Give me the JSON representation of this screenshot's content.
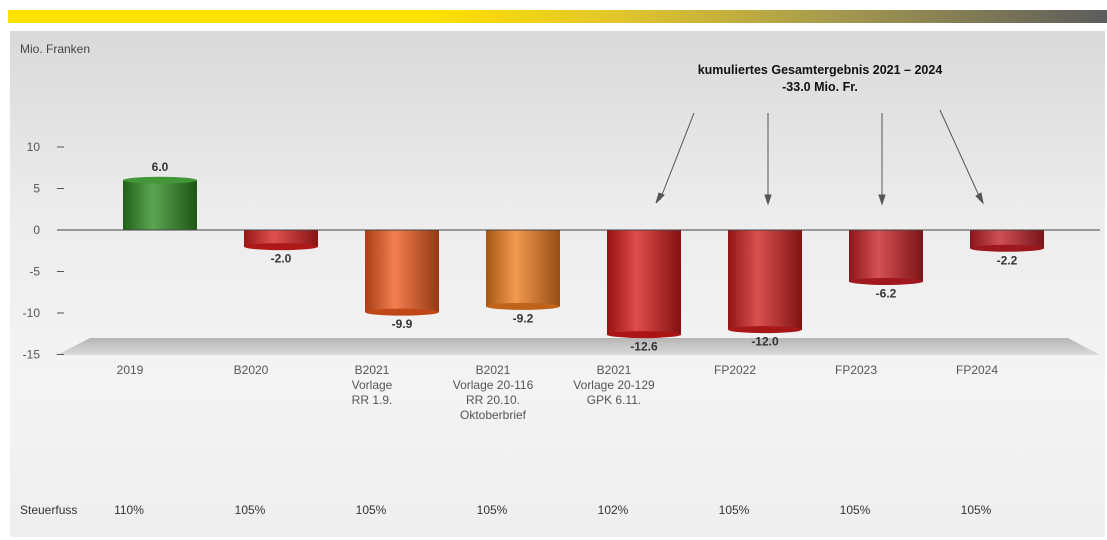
{
  "chart_data": {
    "type": "bar",
    "ylabel": "Mio. Franken",
    "ylim": [
      -15,
      10
    ],
    "yticks": [
      10,
      5,
      0,
      -5,
      -10,
      -15
    ],
    "categories": [
      [
        "2019"
      ],
      [
        "B2020"
      ],
      [
        "B2021",
        "Vorlage",
        "RR 1.9."
      ],
      [
        "B2021",
        "Vorlage 20-116",
        "RR 20.10.",
        "Oktoberbrief"
      ],
      [
        "B2021",
        "Vorlage 20-129",
        "GPK 6.11."
      ],
      [
        "FP2022"
      ],
      [
        "FP2023"
      ],
      [
        "FP2024"
      ]
    ],
    "values": [
      6.0,
      -2.0,
      -9.9,
      -9.2,
      -12.6,
      -12.0,
      -6.2,
      -2.2
    ],
    "value_labels": [
      "6.0",
      "-2.0",
      "-9.9",
      "-9.2",
      "-12.6",
      "-12.0",
      "-6.2",
      "-2.2"
    ],
    "bar_colors": [
      "#2e8b22",
      "#d81f1f",
      "#f05a1e",
      "#f07c1e",
      "#d61a1a",
      "#d01e1e",
      "#c81e24",
      "#c21e26"
    ],
    "annotation": {
      "line1": "kumuliertes Gesamtergebnis 2021 – 2024",
      "line2": "-33.0 Mio. Fr."
    },
    "tax_row": {
      "label": "Steuerfuss",
      "values": [
        "110%",
        "105%",
        "105%",
        "105%",
        "102%",
        "105%",
        "105%",
        "105%"
      ]
    },
    "grid": false,
    "legend": "none"
  }
}
